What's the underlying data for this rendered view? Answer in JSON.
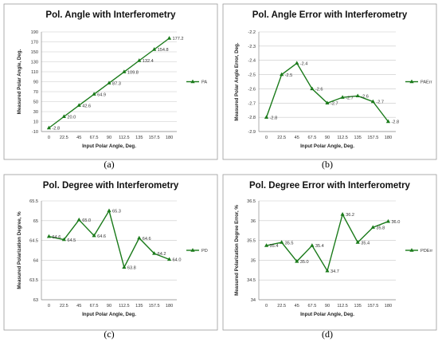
{
  "chart_data": [
    {
      "type": "line",
      "title": "Pol. Angle with Interferometry",
      "xlabel": "Input Polar Angle, Deg.",
      "ylabel": "Measured Polar Angle, Deg.",
      "caption": "(a)",
      "categories": [
        "0",
        "22.5",
        "45",
        "67.5",
        "90",
        "112.5",
        "135",
        "157.5",
        "180"
      ],
      "yticks": [
        "-10",
        "10",
        "30",
        "50",
        "70",
        "90",
        "110",
        "130",
        "150",
        "170",
        "190"
      ],
      "ylim": [
        -10,
        190
      ],
      "series": [
        {
          "name": "PA",
          "values": [
            -2.8,
            20.0,
            42.6,
            64.9,
            87.3,
            109.8,
            132.4,
            154.8,
            177.2
          ],
          "labels": [
            "-2.8",
            "20.0",
            "42.6",
            "64.9",
            "87.3",
            "109.8",
            "132.4",
            "154.8",
            "177.2"
          ]
        }
      ],
      "gridlines": true,
      "legend_position": "right",
      "line_color": "#1a7a1a"
    },
    {
      "type": "line",
      "title": "Pol. Angle Error with Interferometry",
      "xlabel": "Input Polar Angle, Deg.",
      "ylabel": "Measured Polar Angle Error, Deg.",
      "caption": "(b)",
      "categories": [
        "0",
        "22.5",
        "45",
        "67.5",
        "90",
        "112.5",
        "135",
        "157.5",
        "180"
      ],
      "yticks": [
        "-2.9",
        "-2.8",
        "-2.7",
        "-2.6",
        "-2.5",
        "-2.4",
        "-2.3",
        "-2.2"
      ],
      "ylim": [
        -2.9,
        -2.2
      ],
      "series": [
        {
          "name": "PAErr",
          "values": [
            -2.8,
            -2.5,
            -2.42,
            -2.6,
            -2.7,
            -2.66,
            -2.65,
            -2.69,
            -2.83
          ],
          "labels": [
            "-2.8",
            "-2.5",
            "-2.4",
            "-2.6",
            "-2.7",
            "-2.7",
            "-2.6",
            "-2.7",
            "-2.8"
          ]
        }
      ],
      "gridlines": true,
      "legend_position": "right",
      "line_color": "#1a7a1a"
    },
    {
      "type": "line",
      "title": "Pol. Degree with Interferometry",
      "xlabel": "Input Polar Angle, Deg.",
      "ylabel": "Measured Polarization Degree, %",
      "caption": "(c)",
      "categories": [
        "0",
        "22.5",
        "45",
        "67.5",
        "90",
        "112.5",
        "135",
        "157.5",
        "180"
      ],
      "yticks": [
        "63",
        "63.5",
        "64",
        "64.5",
        "65",
        "65.5"
      ],
      "ylim": [
        63,
        65.5
      ],
      "series": [
        {
          "name": "PD",
          "values": [
            64.6,
            64.52,
            65.02,
            64.62,
            65.25,
            63.82,
            64.56,
            64.17,
            64.02
          ],
          "labels": [
            "64.6",
            "64.5",
            "65.0",
            "64.6",
            "65.3",
            "63.8",
            "64.6",
            "64.2",
            "64.0"
          ]
        }
      ],
      "gridlines": true,
      "legend_position": "right",
      "line_color": "#1a7a1a"
    },
    {
      "type": "line",
      "title": "Pol. Degree Error with Interferometry",
      "xlabel": "Input Polar Angle, Deg.",
      "ylabel": "Measured Polarization Degree Error, %",
      "caption": "(d)",
      "categories": [
        "0",
        "22.5",
        "45",
        "67.5",
        "90",
        "112.5",
        "135",
        "157.5",
        "180"
      ],
      "yticks": [
        "34",
        "34.5",
        "35",
        "35.5",
        "36",
        "36.5"
      ],
      "ylim": [
        34,
        36.5
      ],
      "series": [
        {
          "name": "PDErr",
          "values": [
            35.37,
            35.45,
            34.97,
            35.37,
            34.73,
            36.16,
            35.45,
            35.83,
            35.98
          ],
          "labels": [
            "35.4",
            "35.5",
            "35.0",
            "35.4",
            "34.7",
            "36.2",
            "35.4",
            "35.8",
            "36.0"
          ]
        }
      ],
      "gridlines": true,
      "legend_position": "right",
      "line_color": "#1a7a1a"
    }
  ]
}
